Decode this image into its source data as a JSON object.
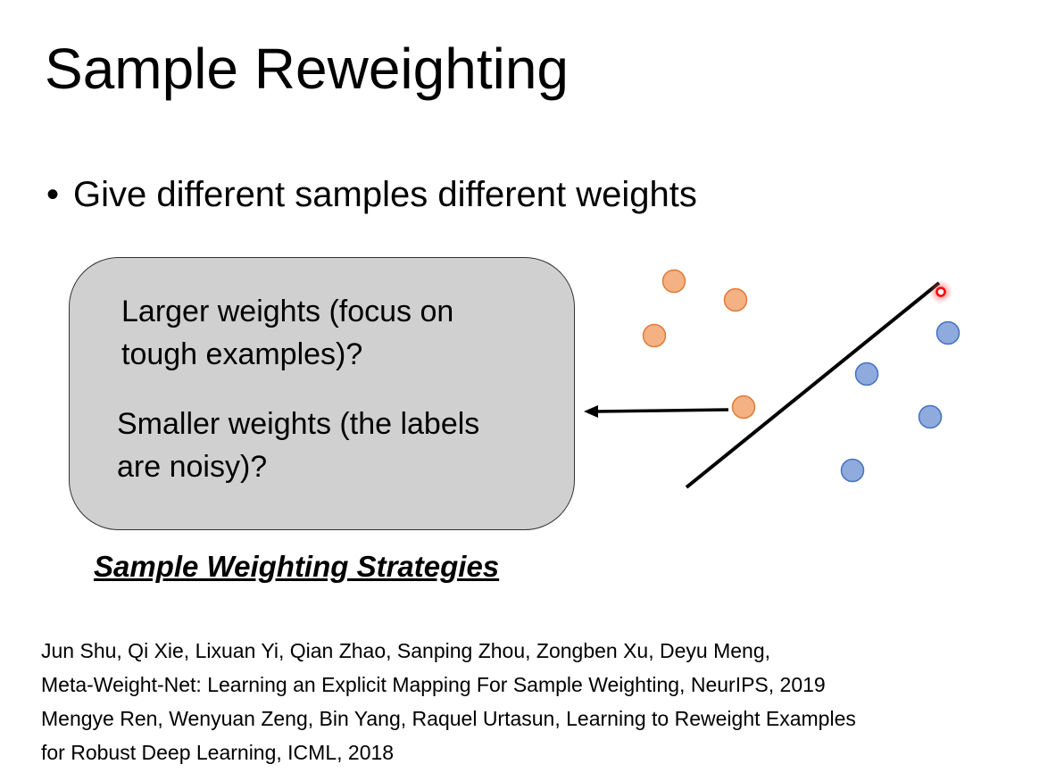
{
  "slide": {
    "title": "Sample Reweighting",
    "bullet": "Give different samples different weights"
  },
  "panel": {
    "option_larger_line1": "Larger weights (focus on",
    "option_larger_line2": "tough examples)?",
    "option_smaller_line1": "Smaller weights (the labels",
    "option_smaller_line2": "are noisy)?"
  },
  "caption": "Sample Weighting Strategies",
  "references": [
    "Jun Shu, Qi Xie, Lixuan Yi, Qian Zhao, Sanping Zhou, Zongben Xu, Deyu Meng,",
    "Meta-Weight-Net: Learning an Explicit Mapping For Sample Weighting, NeurIPS, 2019",
    "Mengye Ren, Wenyuan Zeng, Bin Yang, Raquel Urtasun, Learning to Reweight Examples",
    "for Robust Deep Learning, ICML, 2018"
  ],
  "colors": {
    "orange_class": "#f4b183",
    "orange_stroke": "#e07b39",
    "blue_class": "#8faadc",
    "blue_stroke": "#4472c4",
    "panel_fill": "#d0d0d0",
    "highlight": "#ff0000"
  }
}
